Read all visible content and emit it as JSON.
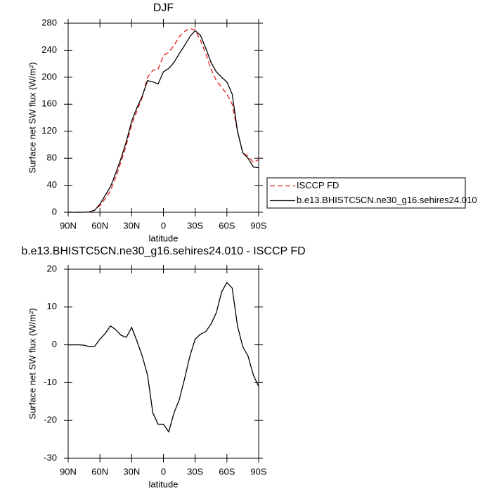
{
  "chart_data": [
    {
      "type": "line",
      "title": "DJF",
      "xlabel": "latitude",
      "ylabel": "Surface net SW flux (W/m²)",
      "x": [
        90,
        85,
        80,
        75,
        70,
        65,
        60,
        55,
        50,
        45,
        40,
        35,
        30,
        25,
        20,
        15,
        10,
        5,
        0,
        -5,
        -10,
        -15,
        -20,
        -25,
        -30,
        -35,
        -40,
        -45,
        -50,
        -55,
        -60,
        -65,
        -70,
        -75,
        -80,
        -85,
        -90
      ],
      "series": [
        {
          "name": "ISCCP FD",
          "color": "#e41a1c",
          "dashed": true,
          "values": [
            0,
            0,
            0,
            0,
            0.5,
            3,
            10,
            20,
            32,
            52,
            75,
            100,
            130,
            150,
            170,
            200,
            210,
            212,
            232,
            237,
            247,
            260,
            268,
            272,
            270,
            255,
            235,
            212,
            195,
            185,
            175,
            160,
            120,
            88,
            83,
            74,
            78
          ]
        },
        {
          "name": "b.e13.BHISTC5CN.ne30_g16.sehires24.010",
          "color": "#000000",
          "dashed": false,
          "values": [
            0,
            0,
            0,
            0,
            0.5,
            3,
            12,
            25,
            38,
            58,
            80,
            105,
            135,
            155,
            172,
            195,
            193,
            190,
            208,
            213,
            222,
            235,
            247,
            260,
            269,
            262,
            243,
            222,
            208,
            200,
            193,
            175,
            120,
            88,
            80,
            67,
            66
          ]
        }
      ],
      "xlim": [
        90,
        -90
      ],
      "xticks": [
        {
          "value": 90,
          "label": "90N"
        },
        {
          "value": 60,
          "label": "60N"
        },
        {
          "value": 30,
          "label": "30N"
        },
        0,
        {
          "value": -30,
          "label": "30S"
        },
        {
          "value": -60,
          "label": "60S"
        },
        {
          "value": -90,
          "label": "90S"
        }
      ],
      "ylim": [
        0,
        280
      ],
      "yticks": [
        0,
        40,
        80,
        120,
        160,
        200,
        240,
        280
      ],
      "legend": "outside-right"
    },
    {
      "type": "line",
      "title": "b.e13.BHISTC5CN.ne30_g16.sehires24.010 - ISCCP FD",
      "xlabel": "latitude",
      "ylabel": "Surface net SW flux (W/m²)",
      "x": [
        90,
        85,
        80,
        75,
        70,
        65,
        60,
        55,
        50,
        45,
        40,
        35,
        30,
        25,
        20,
        15,
        10,
        5,
        0,
        -5,
        -10,
        -15,
        -20,
        -25,
        -30,
        -35,
        -40,
        -45,
        -50,
        -55,
        -60,
        -65,
        -70,
        -75,
        -80,
        -85,
        -90
      ],
      "values": [
        0,
        0,
        0,
        -0.1,
        -0.5,
        -0.4,
        1.5,
        3,
        5,
        4,
        2.5,
        2,
        4.6,
        1,
        -3,
        -8,
        -18,
        -21,
        -21,
        -23,
        -18,
        -14.5,
        -9,
        -3,
        1.5,
        2.8,
        3.5,
        5.5,
        8.5,
        14,
        16.5,
        15,
        5,
        -0.5,
        -3,
        -8,
        -11
      ],
      "color": "#000000",
      "xlim": [
        90,
        -90
      ],
      "xticks": [
        {
          "value": 90,
          "label": "90N"
        },
        {
          "value": 60,
          "label": "60N"
        },
        {
          "value": 30,
          "label": "30N"
        },
        0,
        {
          "value": -30,
          "label": "30S"
        },
        {
          "value": -60,
          "label": "60S"
        },
        {
          "value": -90,
          "label": "90S"
        }
      ],
      "ylim": [
        -30,
        20
      ],
      "yticks": [
        -30,
        -20,
        -10,
        0,
        10,
        20
      ]
    }
  ]
}
